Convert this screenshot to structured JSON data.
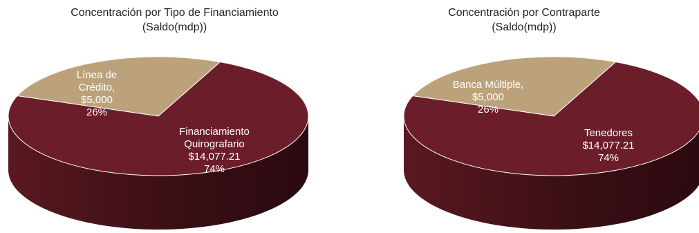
{
  "colors": {
    "primary": "#6b1e2a",
    "primary_side": "#3e1016",
    "secondary": "#bca27a",
    "secondary_side": "#8e7654",
    "label_text": "#ffffff",
    "title_text": "#222222"
  },
  "chart_data": [
    {
      "type": "pie",
      "title": "Concentración por Tipo de Financiamiento",
      "subtitle": "(Saldo(mdp))",
      "series": [
        {
          "name": "Línea de Crédito,",
          "value": 5000,
          "value_label": "$5,000",
          "percent_label": "26%",
          "label_lines": [
            "Línea de",
            "Crédito,",
            "$5,000",
            "26%"
          ]
        },
        {
          "name": "Financiamiento Quirografario",
          "value": 14077.21,
          "value_label": "$14,077.21",
          "percent_label": "74%",
          "label_lines": [
            "Financiamiento",
            "Quirografario",
            "$14,077.21",
            "74%"
          ]
        }
      ]
    },
    {
      "type": "pie",
      "title": "Concentración por Contraparte",
      "subtitle": "(Saldo(mdp))",
      "series": [
        {
          "name": "Banca Múltiple,",
          "value": 5000,
          "value_label": "$5,000",
          "percent_label": "26%",
          "label_lines": [
            "Banca Múltiple,",
            "$5,000",
            "26%"
          ]
        },
        {
          "name": "Tenedores",
          "value": 14077.21,
          "value_label": "$14,077.21",
          "percent_label": "74%",
          "label_lines": [
            "Tenedores",
            "$14,077.21",
            "74%"
          ]
        }
      ]
    }
  ]
}
